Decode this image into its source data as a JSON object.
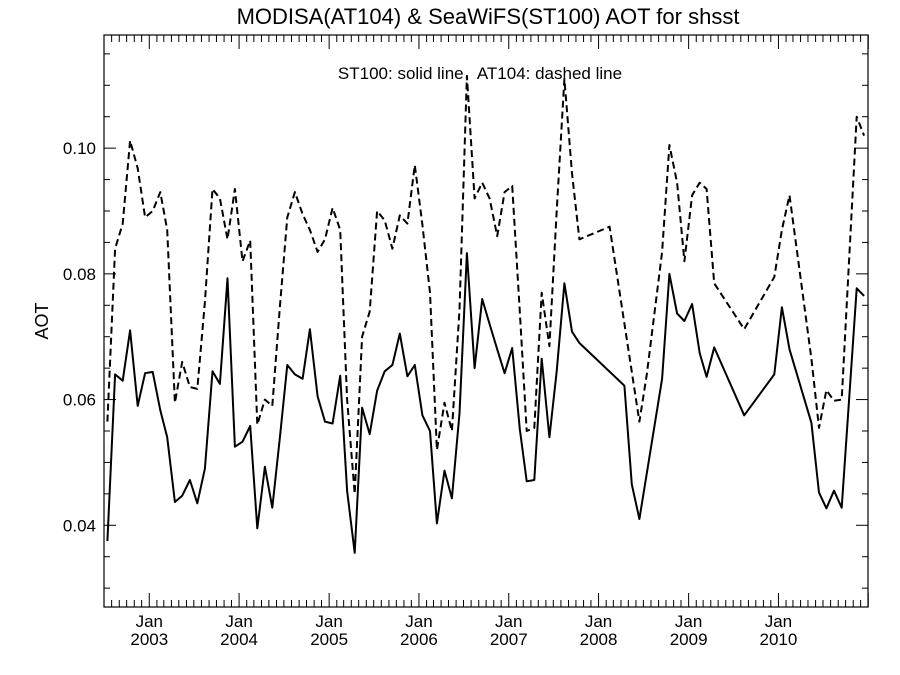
{
  "chart_data": {
    "type": "line",
    "title": "MODISA(AT104) & SeaWiFS(ST100)  AOT for shsst",
    "annotation": "ST100: solid line   AT104: dashed line",
    "ylabel": "AOT",
    "xlabel": "",
    "xlim": [
      "2002-07-01",
      "2010-12-31"
    ],
    "ylim": [
      0.027,
      0.118
    ],
    "yticks": [
      0.04,
      0.06,
      0.08,
      0.1
    ],
    "ytick_labels": [
      "0.04",
      "0.06",
      "0.08",
      "0.10"
    ],
    "x_major_ticks": [
      {
        "date": "2003-01-01",
        "label_top": "Jan",
        "label_bottom": "2003"
      },
      {
        "date": "2004-01-01",
        "label_top": "Jan",
        "label_bottom": "2004"
      },
      {
        "date": "2005-01-01",
        "label_top": "Jan",
        "label_bottom": "2005"
      },
      {
        "date": "2006-01-01",
        "label_top": "Jan",
        "label_bottom": "2006"
      },
      {
        "date": "2007-01-01",
        "label_top": "Jan",
        "label_bottom": "2007"
      },
      {
        "date": "2008-01-01",
        "label_top": "Jan",
        "label_bottom": "2008"
      },
      {
        "date": "2009-01-01",
        "label_top": "Jan",
        "label_bottom": "2009"
      },
      {
        "date": "2010-01-01",
        "label_top": "Jan",
        "label_bottom": "2010"
      }
    ],
    "grid": false,
    "series": [
      {
        "style": "solid",
        "points": [
          [
            "2002-07-15",
            0.0375
          ],
          [
            "2002-08-15",
            0.064
          ],
          [
            "2002-09-15",
            0.063
          ],
          [
            "2002-10-15",
            0.071
          ],
          [
            "2002-11-15",
            0.059
          ],
          [
            "2002-12-15",
            0.0642
          ],
          [
            "2003-01-15",
            0.0644
          ],
          [
            "2003-02-15",
            0.0583
          ],
          [
            "2003-03-15",
            0.054
          ],
          [
            "2003-04-15",
            0.0437
          ],
          [
            "2003-05-15",
            0.0447
          ],
          [
            "2003-06-15",
            0.0472
          ],
          [
            "2003-07-15",
            0.0435
          ],
          [
            "2003-08-15",
            0.049
          ],
          [
            "2003-09-15",
            0.0645
          ],
          [
            "2003-10-15",
            0.0625
          ],
          [
            "2003-11-15",
            0.0793
          ],
          [
            "2003-12-15",
            0.0525
          ],
          [
            "2004-01-15",
            0.0533
          ],
          [
            "2004-02-15",
            0.0558
          ],
          [
            "2004-03-15",
            0.0395
          ],
          [
            "2004-04-15",
            0.0493
          ],
          [
            "2004-05-15",
            0.0428
          ],
          [
            "2004-06-15",
            0.054
          ],
          [
            "2004-07-15",
            0.0655
          ],
          [
            "2004-08-15",
            0.064
          ],
          [
            "2004-09-15",
            0.0633
          ],
          [
            "2004-10-15",
            0.0712
          ],
          [
            "2004-11-15",
            0.0605
          ],
          [
            "2004-12-15",
            0.0565
          ],
          [
            "2005-01-15",
            0.0562
          ],
          [
            "2005-02-15",
            0.0638
          ],
          [
            "2005-03-15",
            0.0455
          ],
          [
            "2005-04-15",
            0.0356
          ],
          [
            "2005-05-15",
            0.0587
          ],
          [
            "2005-06-15",
            0.0545
          ],
          [
            "2005-07-15",
            0.0614
          ],
          [
            "2005-08-15",
            0.0645
          ],
          [
            "2005-09-15",
            0.0655
          ],
          [
            "2005-10-15",
            0.0705
          ],
          [
            "2005-11-15",
            0.0637
          ],
          [
            "2005-12-15",
            0.0655
          ],
          [
            "2006-01-15",
            0.0575
          ],
          [
            "2006-02-15",
            0.055
          ],
          [
            "2006-03-15",
            0.0403
          ],
          [
            "2006-04-15",
            0.0487
          ],
          [
            "2006-05-15",
            0.0443
          ],
          [
            "2006-06-15",
            0.0578
          ],
          [
            "2006-07-15",
            0.0833
          ],
          [
            "2006-08-15",
            0.065
          ],
          [
            "2006-09-15",
            0.076
          ],
          [
            "2006-10-15",
            0.072
          ],
          [
            "2006-11-15",
            0.068
          ],
          [
            "2006-12-15",
            0.0642
          ],
          [
            "2007-01-15",
            0.0682
          ],
          [
            "2007-02-15",
            0.0553
          ],
          [
            "2007-03-15",
            0.047
          ],
          [
            "2007-04-15",
            0.0472
          ],
          [
            "2007-05-15",
            0.0665
          ],
          [
            "2007-06-15",
            0.054
          ],
          [
            "2007-07-15",
            0.0645
          ],
          [
            "2007-08-15",
            0.0785
          ],
          [
            "2007-09-15",
            0.0708
          ],
          [
            "2007-10-15",
            0.069
          ],
          [
            "2008-04-15",
            0.0622
          ],
          [
            "2008-05-15",
            0.0465
          ],
          [
            "2008-06-15",
            0.041
          ],
          [
            "2008-09-15",
            0.0633
          ],
          [
            "2008-10-15",
            0.08
          ],
          [
            "2008-11-15",
            0.0737
          ],
          [
            "2008-12-15",
            0.0725
          ],
          [
            "2009-01-15",
            0.0752
          ],
          [
            "2009-02-15",
            0.0674
          ],
          [
            "2009-03-15",
            0.0636
          ],
          [
            "2009-04-15",
            0.0683
          ],
          [
            "2009-08-15",
            0.0575
          ],
          [
            "2009-12-15",
            0.064
          ],
          [
            "2010-01-15",
            0.0747
          ],
          [
            "2010-02-15",
            0.068
          ],
          [
            "2010-05-15",
            0.0563
          ],
          [
            "2010-06-15",
            0.0452
          ],
          [
            "2010-07-15",
            0.0427
          ],
          [
            "2010-08-15",
            0.0455
          ],
          [
            "2010-09-15",
            0.0428
          ],
          [
            "2010-11-15",
            0.0777
          ],
          [
            "2010-12-15",
            0.0765
          ]
        ]
      },
      {
        "style": "dashed",
        "points": [
          [
            "2002-07-15",
            0.0565
          ],
          [
            "2002-08-15",
            0.084
          ],
          [
            "2002-09-15",
            0.088
          ],
          [
            "2002-10-15",
            0.1012
          ],
          [
            "2002-11-15",
            0.0968
          ],
          [
            "2002-12-15",
            0.089
          ],
          [
            "2003-01-15",
            0.09
          ],
          [
            "2003-02-15",
            0.093
          ],
          [
            "2003-03-15",
            0.087
          ],
          [
            "2003-04-15",
            0.0595
          ],
          [
            "2003-05-15",
            0.066
          ],
          [
            "2003-06-15",
            0.062
          ],
          [
            "2003-07-15",
            0.0617
          ],
          [
            "2003-08-15",
            0.0755
          ],
          [
            "2003-09-15",
            0.0935
          ],
          [
            "2003-10-15",
            0.092
          ],
          [
            "2003-11-15",
            0.0855
          ],
          [
            "2003-12-15",
            0.0935
          ],
          [
            "2004-01-15",
            0.082
          ],
          [
            "2004-02-15",
            0.0853
          ],
          [
            "2004-03-15",
            0.056
          ],
          [
            "2004-04-15",
            0.06
          ],
          [
            "2004-05-15",
            0.059
          ],
          [
            "2004-06-15",
            0.0748
          ],
          [
            "2004-07-15",
            0.089
          ],
          [
            "2004-08-15",
            0.093
          ],
          [
            "2004-09-15",
            0.0895
          ],
          [
            "2004-10-15",
            0.087
          ],
          [
            "2004-11-15",
            0.0835
          ],
          [
            "2004-12-15",
            0.0855
          ],
          [
            "2005-01-15",
            0.0905
          ],
          [
            "2005-02-15",
            0.087
          ],
          [
            "2005-03-15",
            0.06
          ],
          [
            "2005-04-15",
            0.045
          ],
          [
            "2005-05-15",
            0.07
          ],
          [
            "2005-06-15",
            0.074
          ],
          [
            "2005-07-15",
            0.09
          ],
          [
            "2005-08-15",
            0.0885
          ],
          [
            "2005-09-15",
            0.084
          ],
          [
            "2005-10-15",
            0.0893
          ],
          [
            "2005-11-15",
            0.088
          ],
          [
            "2005-12-15",
            0.0973
          ],
          [
            "2006-01-15",
            0.0878
          ],
          [
            "2006-02-15",
            0.077
          ],
          [
            "2006-03-15",
            0.052
          ],
          [
            "2006-04-15",
            0.0595
          ],
          [
            "2006-05-15",
            0.055
          ],
          [
            "2006-06-15",
            0.0743
          ],
          [
            "2006-07-15",
            0.1115
          ],
          [
            "2006-08-15",
            0.092
          ],
          [
            "2006-09-15",
            0.0945
          ],
          [
            "2006-10-15",
            0.092
          ],
          [
            "2006-11-15",
            0.086
          ],
          [
            "2006-12-15",
            0.093
          ],
          [
            "2007-01-15",
            0.094
          ],
          [
            "2007-02-15",
            0.074
          ],
          [
            "2007-03-15",
            0.055
          ],
          [
            "2007-04-15",
            0.0555
          ],
          [
            "2007-05-15",
            0.077
          ],
          [
            "2007-06-15",
            0.0685
          ],
          [
            "2007-07-15",
            0.09
          ],
          [
            "2007-08-15",
            0.111
          ],
          [
            "2007-09-15",
            0.096
          ],
          [
            "2007-10-15",
            0.0855
          ],
          [
            "2008-02-15",
            0.0875
          ],
          [
            "2008-06-15",
            0.0565
          ],
          [
            "2008-07-15",
            0.064
          ],
          [
            "2008-09-15",
            0.0835
          ],
          [
            "2008-10-15",
            0.1005
          ],
          [
            "2008-11-15",
            0.0945
          ],
          [
            "2008-12-15",
            0.082
          ],
          [
            "2009-01-15",
            0.0925
          ],
          [
            "2009-02-15",
            0.0945
          ],
          [
            "2009-03-15",
            0.0935
          ],
          [
            "2009-04-15",
            0.0785
          ],
          [
            "2009-08-15",
            0.0712
          ],
          [
            "2009-12-15",
            0.0795
          ],
          [
            "2010-01-15",
            0.087
          ],
          [
            "2010-02-15",
            0.0925
          ],
          [
            "2010-05-15",
            0.0665
          ],
          [
            "2010-06-15",
            0.0555
          ],
          [
            "2010-07-15",
            0.0615
          ],
          [
            "2010-08-15",
            0.0598
          ],
          [
            "2010-09-15",
            0.06
          ],
          [
            "2010-11-15",
            0.105
          ],
          [
            "2010-12-15",
            0.102
          ]
        ]
      }
    ]
  }
}
